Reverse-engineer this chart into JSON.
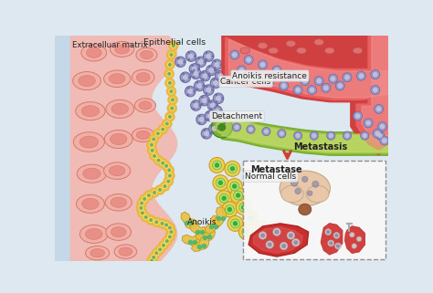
{
  "bg_color": "#dde8f0",
  "labels": {
    "extracellular_matrix": "Extracelluar matrix",
    "epithelial_cells": "Epithelial cells",
    "cancer_cells": "Cancer cells",
    "detachment": "Detachment",
    "anoikis_resistance": "Anoikis resistance",
    "metastasis": "Metastasis",
    "normal_cells": "Normal cells",
    "anoikis": "Anoikis",
    "metastase": "Metastase"
  },
  "colors": {
    "left_blue": "#c5d8e8",
    "ecm_base": "#f2b8b0",
    "ecm_cell_outer": "#f0b0a8",
    "ecm_cell_inner": "#e89088",
    "ecm_dark": "#d87868",
    "epi_outer": "#e8b840",
    "epi_inner": "#f5d860",
    "epi_nucleus": "#70b060",
    "cancer_body": "#9898c8",
    "cancer_outline": "#6868a0",
    "cancer_nucleus": "#c8c8e0",
    "normal_outer": "#f0d050",
    "normal_inner": "#a8e870",
    "normal_nucleus": "#40a838",
    "blood_red_dark": "#d04040",
    "blood_red_mid": "#e86060",
    "blood_red_light": "#f09090",
    "lymph_green_dark": "#78b030",
    "lymph_green_mid": "#a8c850",
    "lymph_green_light": "#c8e070",
    "lymph_end": "#408820",
    "anoikis_blob": "#e8c040",
    "anoikis_spot": "#40b870",
    "organ_dark": "#b02020",
    "organ_mid": "#c83030",
    "organ_spot": "#d06060",
    "brain_base": "#e8c8a8",
    "brain_stem": "#a06040",
    "brain_spot": "#8080a0",
    "arrow_red": "#d04030",
    "dashed_border": "#888888",
    "inset_bg": "#f8f8f8",
    "label_bg": "#ffffffaa",
    "text_color": "#222222"
  }
}
